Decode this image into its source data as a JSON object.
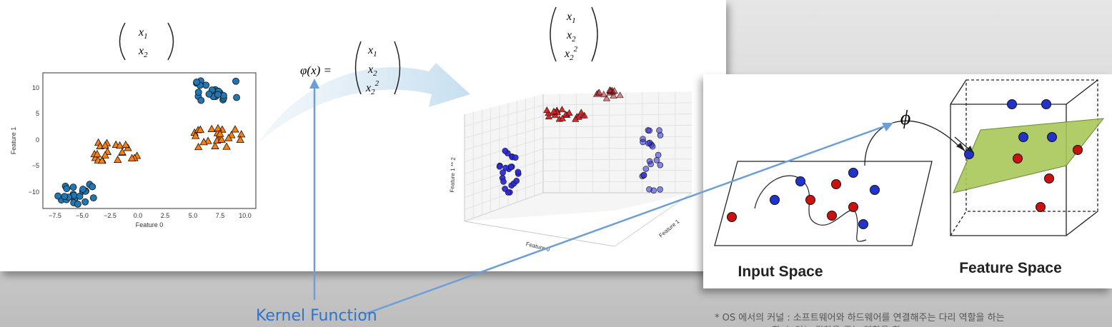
{
  "left": {
    "vector_top": {
      "r1": "x",
      "s1": "1",
      "r2": "x",
      "s2": "2"
    },
    "phi_lhs": "φ(x) =",
    "phi_vec": {
      "r1": "x",
      "s1": "1",
      "r2": "x",
      "s2": "2",
      "r3": "x",
      "s3": "2",
      "p3": "2"
    },
    "vector_3d": {
      "r1": "x",
      "s1": "1",
      "r2": "x",
      "s2": "2",
      "r3": "x",
      "s3": "2",
      "p3": "2"
    },
    "plot2d": {
      "xlabel": "Feature 0",
      "ylabel": "Feature 1",
      "xticks": [
        "−7.5",
        "−5.0",
        "−2.5",
        "0.0",
        "2.5",
        "5.0",
        "7.5",
        "10.0"
      ],
      "yticks": [
        "10",
        "5",
        "0",
        "−5",
        "−10"
      ]
    },
    "plot3d": {
      "zlabel": "Feature 1 ** 2",
      "xlabel": "Feature 0",
      "ylabel": "Feature 1"
    }
  },
  "right": {
    "phi_symbol": "ϕ",
    "input_space": "Input Space",
    "feature_space": "Feature Space"
  },
  "kernel_label": "Kernel Function",
  "note": "* OS 에서의 커널 : 소프트웨어와 하드웨어를 연결해주는 다리 역할을 하는",
  "note2": "할 수 있는 권한을 주는 역할을 함"
}
